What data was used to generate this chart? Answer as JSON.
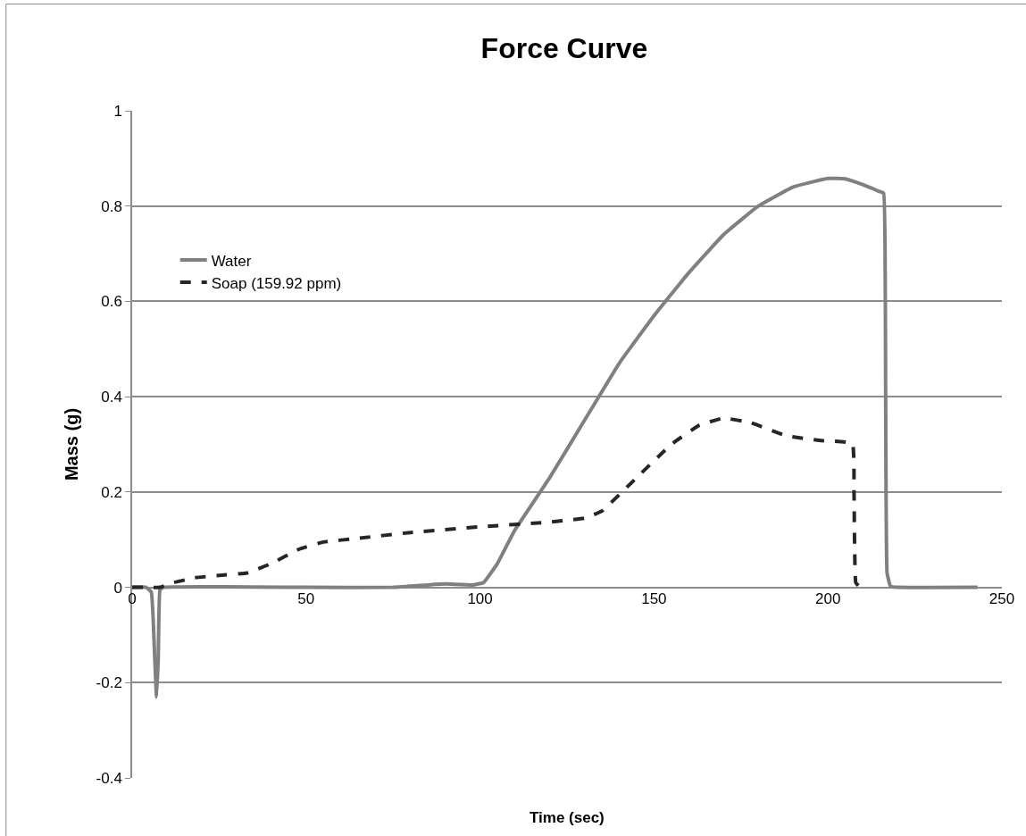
{
  "chart_data": {
    "type": "line",
    "title": "Force Curve",
    "xlabel": "Time (sec)",
    "ylabel": "Mass (g)",
    "xlim": [
      0,
      250
    ],
    "xticks": [
      0,
      50,
      100,
      150,
      200,
      250
    ],
    "ylim": [
      -0.4,
      1
    ],
    "yticks": [
      -0.4,
      -0.2,
      0,
      0.2,
      0.4,
      0.6,
      0.8,
      1
    ],
    "grid": "y",
    "legend": "top left",
    "marker": "none",
    "series": [
      {
        "name": "Water",
        "color": "#808080",
        "line_style": "solid",
        "x": [
          0,
          4,
          5.5,
          6.5,
          7,
          7.5,
          8,
          9,
          50,
          75,
          85,
          90,
          98,
          101,
          105,
          110,
          120,
          130,
          140,
          150,
          160,
          170,
          180,
          190,
          200,
          205,
          210,
          215,
          216,
          216.5,
          217,
          218,
          220,
          243
        ],
        "values": [
          0,
          0,
          -0.01,
          -0.15,
          -0.23,
          -0.15,
          -0.005,
          0,
          0,
          0,
          0.005,
          0.007,
          0.005,
          0.01,
          0.05,
          0.12,
          0.23,
          0.35,
          0.47,
          0.57,
          0.66,
          0.74,
          0.8,
          0.84,
          0.858,
          0.857,
          0.845,
          0.83,
          0.827,
          0.6,
          0.03,
          0.002,
          0,
          0
        ]
      },
      {
        "name": "Soap (159.92 ppm)",
        "color": "#262626",
        "line_style": "dashed",
        "x": [
          0,
          5,
          8,
          12,
          18,
          25,
          33,
          40,
          48,
          55,
          65,
          80,
          100,
          120,
          130,
          135,
          145,
          155,
          163,
          170,
          178,
          188,
          198,
          207,
          207.5,
          208,
          209,
          211
        ],
        "values": [
          0,
          0,
          0,
          0.01,
          0.02,
          0.025,
          0.03,
          0.05,
          0.08,
          0.095,
          0.103,
          0.115,
          0.127,
          0.137,
          0.145,
          0.16,
          0.23,
          0.3,
          0.34,
          0.355,
          0.345,
          0.318,
          0.308,
          0.302,
          0.2,
          0.01,
          0.002,
          0
        ]
      }
    ]
  }
}
